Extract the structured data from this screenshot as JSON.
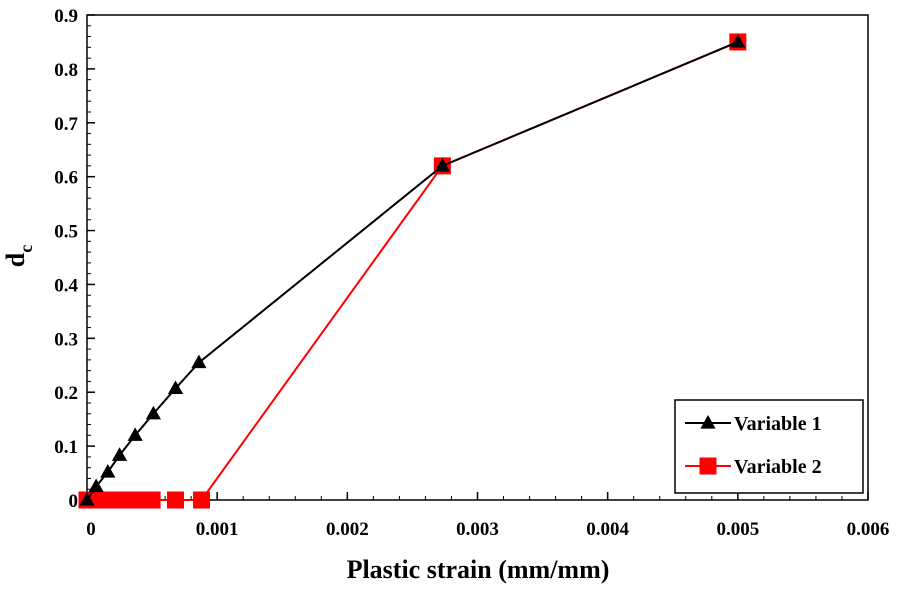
{
  "chart_data": {
    "type": "line",
    "title": "",
    "xlabel": "Plastic strain (mm/mm)",
    "ylabel": "d",
    "ylabel_subscript": "c",
    "xlim": [
      0,
      0.006
    ],
    "ylim": [
      0,
      0.9
    ],
    "xticks": [
      0,
      0.001,
      0.002,
      0.003,
      0.004,
      0.005,
      0.006
    ],
    "xtick_labels": [
      "0",
      "0.001",
      "0.002",
      "0.003",
      "0.004",
      "0.005",
      "0.006"
    ],
    "yticks": [
      0,
      0.1,
      0.2,
      0.3,
      0.4,
      0.5,
      0.6,
      0.7,
      0.8,
      0.9
    ],
    "ytick_labels": [
      "0",
      "0.1",
      "0.2",
      "0.3",
      "0.4",
      "0.5",
      "0.6",
      "0.7",
      "0.8",
      "0.9"
    ],
    "grid": false,
    "legend_position": "bottom-right",
    "series": [
      {
        "name": "Variable 1",
        "color": "#000000",
        "marker": "triangle",
        "points": [
          [
            0,
            0
          ],
          [
            7e-05,
            0.025
          ],
          [
            0.00016,
            0.052
          ],
          [
            0.00025,
            0.083
          ],
          [
            0.00037,
            0.12
          ],
          [
            0.00051,
            0.16
          ],
          [
            0.00068,
            0.207
          ],
          [
            0.00086,
            0.255
          ],
          [
            0.00273,
            0.62
          ],
          [
            0.005,
            0.85
          ]
        ]
      },
      {
        "name": "Variable 2",
        "color": "#ff0000",
        "marker": "square",
        "points": [
          [
            0,
            0
          ],
          [
            5e-05,
            0
          ],
          [
            0.0001,
            0
          ],
          [
            0.00015,
            0
          ],
          [
            0.0002,
            0
          ],
          [
            0.00026,
            0
          ],
          [
            0.00032,
            0
          ],
          [
            0.00038,
            0
          ],
          [
            0.00044,
            0
          ],
          [
            0.0005,
            0
          ],
          [
            0.00068,
            0
          ],
          [
            0.00088,
            0
          ],
          [
            0.00273,
            0.62
          ],
          [
            0.005,
            0.85
          ]
        ]
      }
    ]
  }
}
